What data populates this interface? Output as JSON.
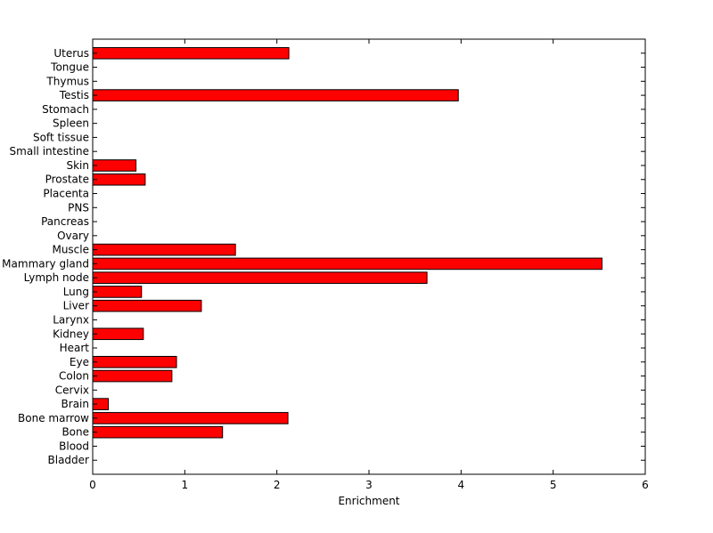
{
  "chart_data": {
    "type": "bar",
    "orientation": "horizontal",
    "title": "",
    "xlabel": "Enrichment",
    "ylabel": "",
    "xlim": [
      0,
      6
    ],
    "xticks": [
      "0",
      "1",
      "2",
      "3",
      "4",
      "5",
      "6"
    ],
    "grid": false,
    "bar_color": "#ff0000",
    "categories": [
      "Uterus",
      "Tongue",
      "Thymus",
      "Testis",
      "Stomach",
      "Spleen",
      "Soft tissue",
      "Small intestine",
      "Skin",
      "Prostate",
      "Placenta",
      "PNS",
      "Pancreas",
      "Ovary",
      "Muscle",
      "Mammary gland",
      "Lymph node",
      "Lung",
      "Liver",
      "Larynx",
      "Kidney",
      "Heart",
      "Eye",
      "Colon",
      "Cervix",
      "Brain",
      "Bone marrow",
      "Bone",
      "Blood",
      "Bladder"
    ],
    "values": [
      2.13,
      0,
      0,
      3.97,
      0,
      0,
      0,
      0,
      0.47,
      0.57,
      0,
      0,
      0,
      0,
      1.55,
      5.53,
      3.63,
      0.53,
      1.18,
      0,
      0.55,
      0,
      0.91,
      0.86,
      0,
      0.17,
      2.12,
      1.41,
      0,
      0
    ]
  }
}
